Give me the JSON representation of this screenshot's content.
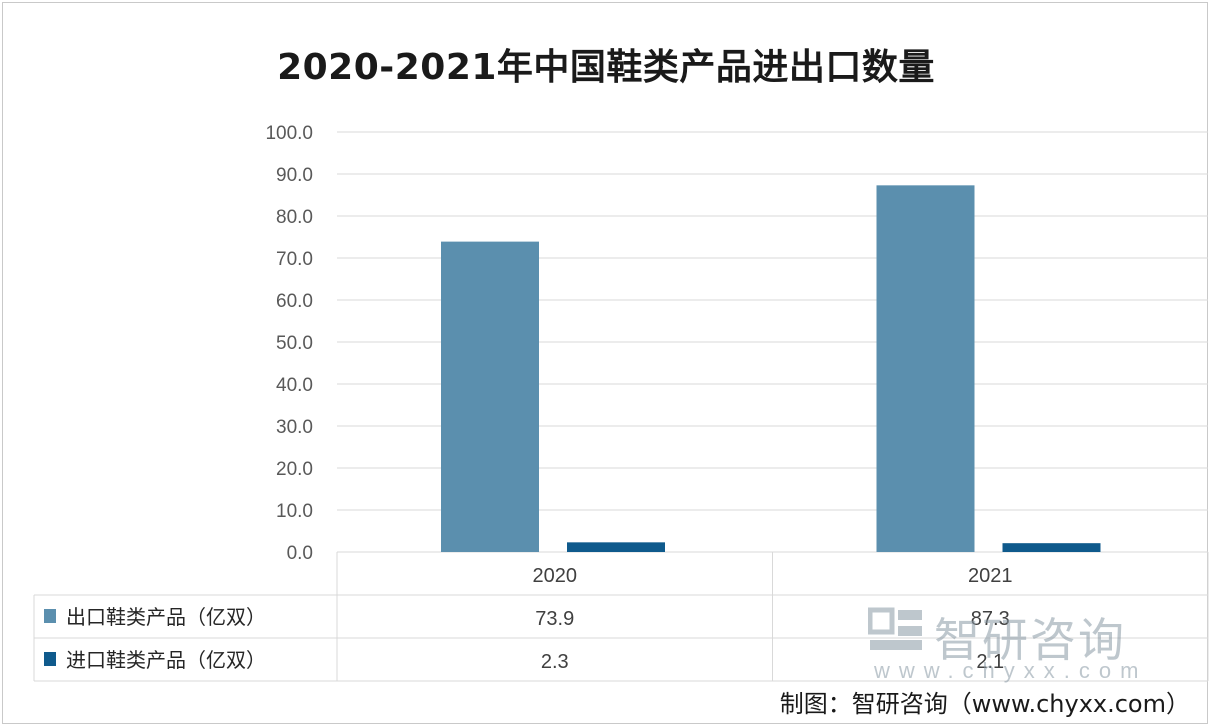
{
  "chart_data": {
    "type": "bar",
    "title": "2020-2021年中国鞋类产品进出口数量",
    "categories": [
      "2020",
      "2021"
    ],
    "series": [
      {
        "name": "出口鞋类产品（亿双）",
        "values": [
          73.9,
          87.3
        ],
        "color": "#5b8fae"
      },
      {
        "name": "进口鞋类产品（亿双）",
        "values": [
          2.3,
          2.1
        ],
        "color": "#0f5a8c"
      }
    ],
    "ylim": [
      0,
      100
    ],
    "yticks": [
      "0.0",
      "10.0",
      "20.0",
      "30.0",
      "40.0",
      "50.0",
      "60.0",
      "70.0",
      "80.0",
      "90.0",
      "100.0"
    ],
    "data_labels": [
      [
        "73.9",
        "87.3"
      ],
      [
        "2.3",
        "2.1"
      ]
    ],
    "grid": true,
    "data_table": true
  },
  "watermark": {
    "brand": "智研咨询",
    "url": "www.chyxx.com"
  },
  "source_note": "制图：智研咨询（www.chyxx.com）"
}
